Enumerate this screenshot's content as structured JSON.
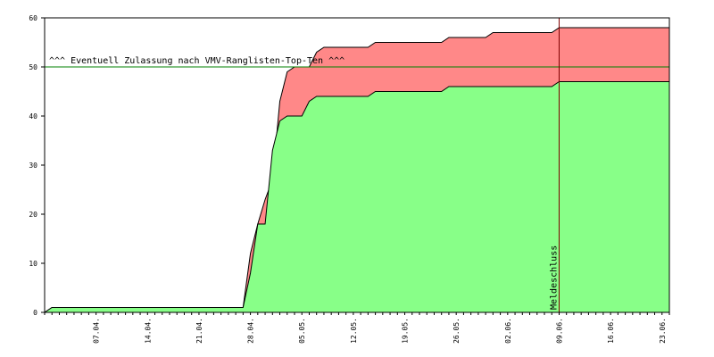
{
  "chart_data": {
    "type": "area",
    "title": "",
    "xlabel": "",
    "ylabel": "",
    "ylim": [
      0,
      60
    ],
    "y_ticks": [
      0,
      10,
      20,
      30,
      40,
      50,
      60
    ],
    "x_tick_labels": [
      "07.04.",
      "14.04.",
      "21.04.",
      "28.04.",
      "05.05.",
      "12.05.",
      "19.05.",
      "26.05.",
      "02.06.",
      "09.06.",
      "16.06.",
      "23.06."
    ],
    "grid": false,
    "series": [
      {
        "color": "#88ff88",
        "outline": "#000000",
        "points": [
          [
            0,
            0
          ],
          [
            1,
            1
          ],
          [
            27,
            1
          ],
          [
            28,
            8
          ],
          [
            29,
            18
          ],
          [
            30,
            18
          ],
          [
            31,
            33
          ],
          [
            32,
            39
          ],
          [
            33,
            40
          ],
          [
            35,
            40
          ],
          [
            36,
            43
          ],
          [
            37,
            44
          ],
          [
            44,
            44
          ],
          [
            45,
            45
          ],
          [
            54,
            45
          ],
          [
            55,
            46
          ],
          [
            69,
            46
          ],
          [
            70,
            47
          ],
          [
            85,
            47
          ]
        ]
      },
      {
        "color": "#ff8888",
        "outline": "#000000",
        "points": [
          [
            0,
            0
          ],
          [
            1,
            1
          ],
          [
            27,
            1
          ],
          [
            28,
            12
          ],
          [
            29,
            18
          ],
          [
            30,
            23
          ],
          [
            31,
            27
          ],
          [
            32,
            43
          ],
          [
            33,
            49
          ],
          [
            34,
            50
          ],
          [
            36,
            50
          ],
          [
            37,
            53
          ],
          [
            38,
            54
          ],
          [
            44,
            54
          ],
          [
            45,
            55
          ],
          [
            54,
            55
          ],
          [
            55,
            56
          ],
          [
            60,
            56
          ],
          [
            61,
            57
          ],
          [
            69,
            57
          ],
          [
            70,
            58
          ],
          [
            85,
            58
          ]
        ]
      }
    ],
    "reference_line": {
      "value": 50,
      "label": "^^^ Eventuell Zulassung nach VMV-Ranglisten-Top-Ten ^^^",
      "color": "#008000"
    },
    "marker_line": {
      "x": 70,
      "label": "Meldeschluss",
      "color": "#800000"
    }
  }
}
